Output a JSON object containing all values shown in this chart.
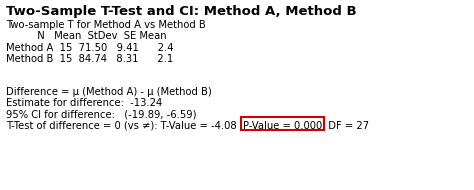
{
  "title": "Two-Sample T-Test and CI: Method A, Method B",
  "title_fontsize": 9.5,
  "body_fontsize": 7.2,
  "monospace_font": "Courier New",
  "background_color": "#ffffff",
  "line1": "Two-sample T for Method A vs Method B",
  "line2": "          N   Mean  StDev  SE Mean",
  "line3": "Method A  15  71.50   9.41      2.4",
  "line4": "Method B  15  84.74   8.31      2.1",
  "line7": "Difference = μ (Method A) - μ (Method B)",
  "line8": "Estimate for difference:  -13.24",
  "line9": "95% CI for difference:   (-19.89, -6.59)",
  "line10_before_box": "T-Test of difference = 0 (vs ≠): T-Value = -4.08  ",
  "line10_box_text": "P-Value = 0.000",
  "line10_after_box": "  DF = 27",
  "box_color": "#cc0000",
  "text_color": "#000000",
  "fig_width": 4.74,
  "fig_height": 1.9,
  "dpi": 100
}
